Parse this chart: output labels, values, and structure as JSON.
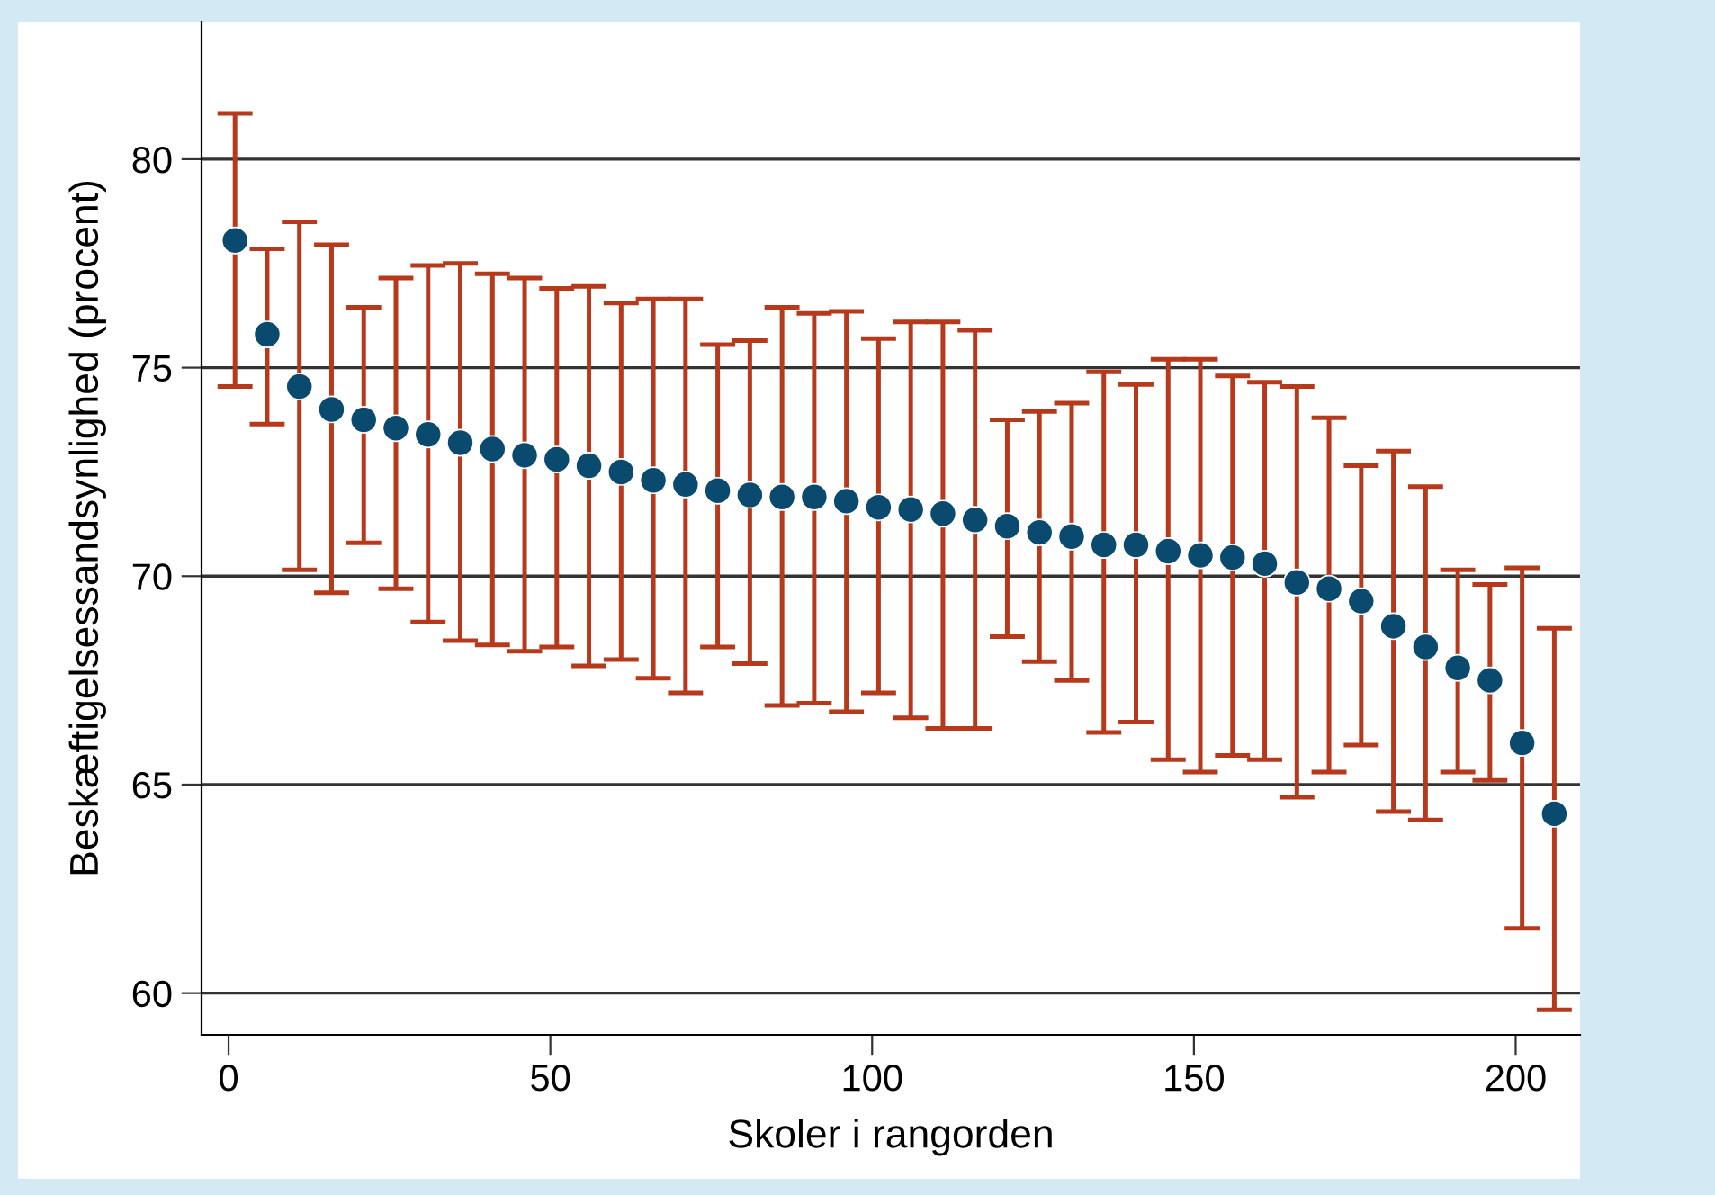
{
  "chart_data": {
    "type": "scatter",
    "xlabel": "Skoler i rangorden",
    "ylabel": "Beskæftigelsessandsynlighed (procent)",
    "x": [
      1,
      6,
      11,
      16,
      21,
      26,
      31,
      36,
      41,
      46,
      51,
      56,
      61,
      66,
      71,
      76,
      81,
      86,
      91,
      96,
      101,
      106,
      111,
      116,
      121,
      126,
      131,
      136,
      141,
      146,
      151,
      156,
      161,
      166,
      171,
      176,
      181,
      186,
      191,
      196,
      201,
      206
    ],
    "series": [
      {
        "color": "#0b4a6f",
        "values": [
          78.05,
          75.8,
          74.55,
          74.0,
          73.75,
          73.55,
          73.4,
          73.2,
          73.05,
          72.9,
          72.8,
          72.65,
          72.5,
          72.3,
          72.2,
          72.05,
          71.95,
          71.9,
          71.9,
          71.8,
          71.65,
          71.6,
          71.5,
          71.35,
          71.2,
          71.05,
          70.95,
          70.75,
          70.75,
          70.6,
          70.5,
          70.45,
          70.3,
          69.85,
          69.7,
          69.4,
          68.8,
          68.3,
          67.8,
          67.5,
          66.0,
          64.3
        ],
        "errors": [
          [
            74.55,
            81.1
          ],
          [
            73.65,
            77.85
          ],
          [
            70.15,
            78.5
          ],
          [
            69.6,
            77.95
          ],
          [
            70.8,
            76.45
          ],
          [
            69.7,
            77.15
          ],
          [
            68.9,
            77.45
          ],
          [
            68.45,
            77.5
          ],
          [
            68.35,
            77.25
          ],
          [
            68.2,
            77.15
          ],
          [
            68.3,
            76.9
          ],
          [
            67.85,
            76.95
          ],
          [
            68.0,
            76.55
          ],
          [
            67.55,
            76.65
          ],
          [
            67.2,
            76.65
          ],
          [
            68.3,
            75.55
          ],
          [
            67.9,
            75.65
          ],
          [
            66.9,
            76.45
          ],
          [
            66.95,
            76.3
          ],
          [
            66.75,
            76.35
          ],
          [
            67.2,
            75.7
          ],
          [
            66.6,
            76.1
          ],
          [
            66.35,
            76.1
          ],
          [
            66.35,
            75.9
          ],
          [
            68.55,
            73.75
          ],
          [
            67.95,
            73.95
          ],
          [
            67.5,
            74.15
          ],
          [
            66.25,
            74.9
          ],
          [
            66.5,
            74.6
          ],
          [
            65.6,
            75.2
          ],
          [
            65.3,
            75.2
          ],
          [
            65.7,
            74.8
          ],
          [
            65.6,
            74.65
          ],
          [
            64.7,
            74.55
          ],
          [
            65.3,
            73.8
          ],
          [
            65.95,
            72.65
          ],
          [
            64.35,
            73.0
          ],
          [
            64.15,
            72.15
          ],
          [
            65.3,
            70.15
          ],
          [
            65.1,
            69.8
          ],
          [
            61.55,
            70.2
          ],
          [
            59.6,
            68.75
          ]
        ]
      }
    ],
    "marker": "circle",
    "xlim": [
      -4.2,
      210
    ],
    "ylim": [
      59,
      83.3
    ],
    "xticks": [
      0,
      50,
      100,
      150,
      200
    ],
    "yticks": [
      60,
      65,
      70,
      75,
      80
    ],
    "grid": "y",
    "legend": false
  }
}
